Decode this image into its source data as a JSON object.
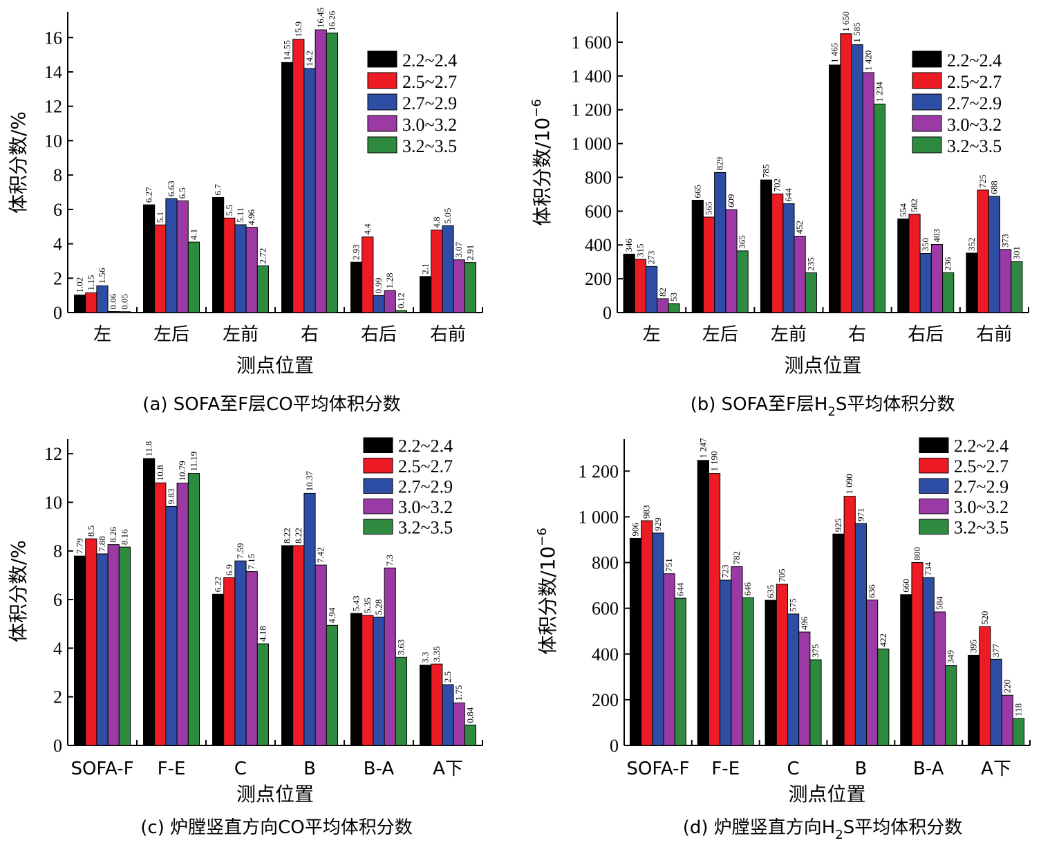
{
  "series_colors": [
    "#000000",
    "#ed1c24",
    "#2e4ea5",
    "#9b3aa5",
    "#2e8a3e"
  ],
  "legend_labels": [
    "2.2~2.4",
    "2.5~2.7",
    "2.7~2.9",
    "3.0~3.2",
    "3.2~3.5"
  ],
  "chart_data": [
    {
      "type": "bar",
      "caption": "(a) SOFA至F层CO平均体积分数",
      "xlabel": "测点位置",
      "ylabel": "体积分数/%",
      "ylim": [
        0,
        17.5
      ],
      "yticks": [
        0,
        2,
        4,
        6,
        8,
        10,
        12,
        14,
        16
      ],
      "ytick_labels": [
        "0",
        "2",
        "4",
        "6",
        "8",
        "10",
        "12",
        "14",
        "16"
      ],
      "categories": [
        "左",
        "左后",
        "左前",
        "右",
        "右后",
        "右前"
      ],
      "series": [
        {
          "name": "2.2~2.4",
          "values": [
            1.02,
            6.27,
            6.7,
            14.55,
            2.93,
            2.1
          ],
          "labels": [
            "1.02",
            "6.27",
            "6.7",
            "14.55",
            "2.93",
            "2.1"
          ]
        },
        {
          "name": "2.5~2.7",
          "values": [
            1.15,
            5.1,
            5.5,
            15.9,
            4.4,
            4.8
          ],
          "labels": [
            "1.15",
            "5.1",
            "5.5",
            "15.9",
            "4.4",
            "4.8"
          ]
        },
        {
          "name": "2.7~2.9",
          "values": [
            1.56,
            6.63,
            5.11,
            14.2,
            0.99,
            5.05
          ],
          "labels": [
            "1.56",
            "6.63",
            "5.11",
            "14.2",
            "0.99",
            "5.05"
          ]
        },
        {
          "name": "3.0~3.2",
          "values": [
            0.06,
            6.5,
            4.96,
            16.45,
            1.28,
            3.07
          ],
          "labels": [
            "0.06",
            "6.5",
            "4.96",
            "16.45",
            "1.28",
            "3.07"
          ]
        },
        {
          "name": "3.2~3.5",
          "values": [
            0.05,
            4.1,
            2.72,
            16.26,
            0.12,
            2.91
          ],
          "labels": [
            "0.05",
            "4.1",
            "2.72",
            "16.26",
            "0.12",
            "2.91"
          ]
        }
      ]
    },
    {
      "type": "bar",
      "caption_prefix": "(b) SOFA至F层H",
      "caption_sub": "2",
      "caption_suffix": "S平均体积分数",
      "xlabel": "测点位置",
      "ylabel_main": "体积分数/10",
      "ylabel_sup": "−6",
      "ylim": [
        0,
        1780
      ],
      "yticks": [
        0,
        200,
        400,
        600,
        800,
        1000,
        1200,
        1400,
        1600
      ],
      "ytick_labels": [
        "0",
        "200",
        "400",
        "600",
        "800",
        "1 000",
        "1 200",
        "1 400",
        "1 600"
      ],
      "categories": [
        "左",
        "左后",
        "左前",
        "右",
        "右后",
        "右前"
      ],
      "series": [
        {
          "name": "2.2~2.4",
          "values": [
            346,
            665,
            785,
            1465,
            554,
            352
          ],
          "labels": [
            "346",
            "665",
            "785",
            "1 465",
            "554",
            "352"
          ]
        },
        {
          "name": "2.5~2.7",
          "values": [
            315,
            565,
            702,
            1650,
            582,
            725
          ],
          "labels": [
            "315",
            "565",
            "702",
            "1 650",
            "582",
            "725"
          ]
        },
        {
          "name": "2.7~2.9",
          "values": [
            273,
            829,
            644,
            1585,
            350,
            688
          ],
          "labels": [
            "273",
            "829",
            "644",
            "1 585",
            "350",
            "688"
          ]
        },
        {
          "name": "3.0~3.2",
          "values": [
            82,
            609,
            452,
            1420,
            403,
            373
          ],
          "labels": [
            "82",
            "609",
            "452",
            "1 420",
            "403",
            "373"
          ]
        },
        {
          "name": "3.2~3.5",
          "values": [
            53,
            365,
            235,
            1234,
            236,
            301
          ],
          "labels": [
            "53",
            "365",
            "235",
            "1 234",
            "236",
            "301"
          ]
        }
      ]
    },
    {
      "type": "bar",
      "caption": "(c) 炉膛竖直方向CO平均体积分数",
      "xlabel": "测点位置",
      "ylabel": "体积分数/%",
      "ylim": [
        0,
        12.6
      ],
      "yticks": [
        0,
        2,
        4,
        6,
        8,
        10,
        12
      ],
      "ytick_labels": [
        "0",
        "2",
        "4",
        "6",
        "8",
        "10",
        "12"
      ],
      "categories": [
        "SOFA-F",
        "F-E",
        "C",
        "B",
        "B-A",
        "A下"
      ],
      "series": [
        {
          "name": "2.2~2.4",
          "values": [
            7.79,
            11.8,
            6.22,
            8.22,
            5.43,
            3.3
          ],
          "labels": [
            "7.79",
            "11.8",
            "6.22",
            "8.22",
            "5.43",
            "3.3"
          ]
        },
        {
          "name": "2.5~2.7",
          "values": [
            8.5,
            10.8,
            6.9,
            8.22,
            5.35,
            3.35
          ],
          "labels": [
            "8.5",
            "10.8",
            "6.9",
            "8.22",
            "5.35",
            "3.35"
          ]
        },
        {
          "name": "2.7~2.9",
          "values": [
            7.88,
            9.83,
            7.59,
            10.37,
            5.28,
            2.5
          ],
          "labels": [
            "7.88",
            "9.83",
            "7.59",
            "10.37",
            "5.28",
            "2.5"
          ]
        },
        {
          "name": "3.0~3.2",
          "values": [
            8.26,
            10.79,
            7.15,
            7.42,
            7.3,
            1.75
          ],
          "labels": [
            "8.26",
            "10.79",
            "7.15",
            "7.42",
            "7.3",
            "1.75"
          ]
        },
        {
          "name": "3.2~3.5",
          "values": [
            8.16,
            11.19,
            4.18,
            4.94,
            3.63,
            0.84
          ],
          "labels": [
            "8.16",
            "11.19",
            "4.18",
            "4.94",
            "3.63",
            "0.84"
          ]
        }
      ]
    },
    {
      "type": "bar",
      "caption_prefix": "(d) 炉膛竖直方向H",
      "caption_sub": "2",
      "caption_suffix": "S平均体积分数",
      "xlabel": "测点位置",
      "ylabel_main": "体积分数/10",
      "ylabel_sup": "−6",
      "ylim": [
        0,
        1340
      ],
      "yticks": [
        0,
        200,
        400,
        600,
        800,
        1000,
        1200
      ],
      "ytick_labels": [
        "0",
        "200",
        "400",
        "600",
        "800",
        "1 000",
        "1 200"
      ],
      "categories": [
        "SOFA-F",
        "F-E",
        "C",
        "B",
        "B-A",
        "A下"
      ],
      "series": [
        {
          "name": "2.2~2.4",
          "values": [
            906,
            1247,
            635,
            925,
            660,
            395
          ],
          "labels": [
            "906",
            "1 247",
            "635",
            "925",
            "660",
            "395"
          ]
        },
        {
          "name": "2.5~2.7",
          "values": [
            983,
            1190,
            705,
            1090,
            800,
            520
          ],
          "labels": [
            "983",
            "1 190",
            "705",
            "1 090",
            "800",
            "520"
          ]
        },
        {
          "name": "2.7~2.9",
          "values": [
            929,
            723,
            575,
            971,
            734,
            377
          ],
          "labels": [
            "929",
            "723",
            "575",
            "971",
            "734",
            "377"
          ]
        },
        {
          "name": "3.0~3.2",
          "values": [
            751,
            782,
            496,
            636,
            584,
            220
          ],
          "labels": [
            "751",
            "782",
            "496",
            "636",
            "584",
            "220"
          ]
        },
        {
          "name": "3.2~3.5",
          "values": [
            644,
            646,
            375,
            422,
            349,
            118
          ],
          "labels": [
            "644",
            "646",
            "375",
            "422",
            "349",
            "118"
          ]
        }
      ]
    }
  ]
}
